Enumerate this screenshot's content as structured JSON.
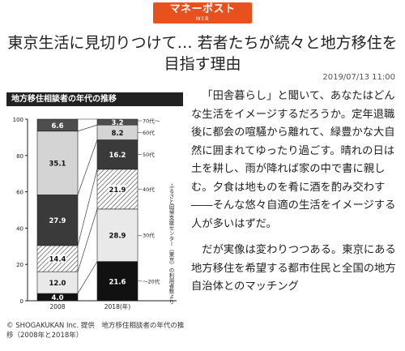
{
  "logo": {
    "main": "マネーポスト",
    "sub": "WEB"
  },
  "article": {
    "title": "東京生活に見切りつけて… 若者たちが続々と地方移住を目指す理由",
    "date": "2019/07/13 11:00",
    "paragraphs": [
      "「田舎暮らし」と聞いて、あなたはどんな生活をイメージするだろうか。定年退職後に都会の喧騒から離れて、緑豊かな大自然に囲まれてゆったり過ごす。晴れの日は土を耕し、雨が降れば家の中で書に親しむ。夕食は地ものを肴に酒を酌み交わす――そんな悠々自適の生活をイメージする人が多いはずだ。",
      "だが実像は変わりつつある。東京にある地方移住を希望する都市住民と全国の地方自治体とのマッチング"
    ]
  },
  "figure": {
    "caption": "© SHOGAKUKAN Inc. 提供　地方移住相談者の年代の推移（2008年と2018年）",
    "source_note": "ふるさと回帰支援センター（東京）の利用者数より",
    "chart_data": {
      "type": "bar",
      "stacked": true,
      "title": "地方移住相談者の年代の推移",
      "categories": [
        "2008",
        "2018(年)"
      ],
      "ylim": [
        0,
        100
      ],
      "yticks": [
        "0",
        "20",
        "40",
        "60",
        "80",
        "100"
      ],
      "series": [
        {
          "name": "～20代",
          "values": [
            4.0,
            21.6
          ],
          "color": "#111111"
        },
        {
          "name": "30代",
          "values": [
            12.0,
            28.9
          ],
          "color": "#e9e9e9"
        },
        {
          "name": "40代",
          "values": [
            14.4,
            21.9
          ],
          "color": "hatch"
        },
        {
          "name": "50代",
          "values": [
            27.9,
            16.2
          ],
          "color": "#3a3a3a"
        },
        {
          "name": "60代",
          "values": [
            35.1,
            8.2
          ],
          "color": "#d4d4d4"
        },
        {
          "name": "70代～",
          "values": [
            6.6,
            3.2
          ],
          "color": "#4d4d4d"
        }
      ]
    }
  }
}
